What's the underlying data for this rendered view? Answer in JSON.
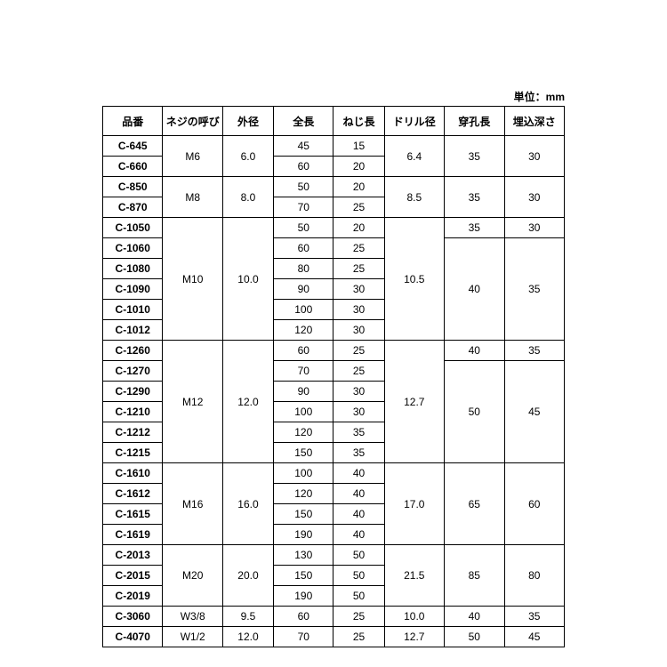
{
  "unit_label": "単位：mm",
  "columns": [
    "品番",
    "ネジの呼び",
    "外径",
    "全長",
    "ねじ長",
    "ドリル径",
    "穿孔長",
    "埋込深さ"
  ],
  "groups": [
    {
      "thread": "M6",
      "od": "6.0",
      "drill": "6.4",
      "hole": "35",
      "embed": "30",
      "rows": [
        {
          "pn": "C-645",
          "len": "45",
          "tl": "15"
        },
        {
          "pn": "C-660",
          "len": "60",
          "tl": "20"
        }
      ]
    },
    {
      "thread": "M8",
      "od": "8.0",
      "drill": "8.5",
      "hole": "35",
      "embed": "30",
      "rows": [
        {
          "pn": "C-850",
          "len": "50",
          "tl": "20"
        },
        {
          "pn": "C-870",
          "len": "70",
          "tl": "25"
        }
      ]
    },
    {
      "thread": "M10",
      "od": "10.0",
      "drill": "10.5",
      "hole_groups": [
        {
          "hole": "35",
          "embed": "30",
          "count": 1
        },
        {
          "hole": "40",
          "embed": "35",
          "count": 5
        }
      ],
      "rows": [
        {
          "pn": "C-1050",
          "len": "50",
          "tl": "20"
        },
        {
          "pn": "C-1060",
          "len": "60",
          "tl": "25"
        },
        {
          "pn": "C-1080",
          "len": "80",
          "tl": "25"
        },
        {
          "pn": "C-1090",
          "len": "90",
          "tl": "30"
        },
        {
          "pn": "C-1010",
          "len": "100",
          "tl": "30"
        },
        {
          "pn": "C-1012",
          "len": "120",
          "tl": "30"
        }
      ]
    },
    {
      "thread": "M12",
      "od": "12.0",
      "drill": "12.7",
      "hole_groups": [
        {
          "hole": "40",
          "embed": "35",
          "count": 1
        },
        {
          "hole": "50",
          "embed": "45",
          "count": 5
        }
      ],
      "rows": [
        {
          "pn": "C-1260",
          "len": "60",
          "tl": "25"
        },
        {
          "pn": "C-1270",
          "len": "70",
          "tl": "25"
        },
        {
          "pn": "C-1290",
          "len": "90",
          "tl": "30"
        },
        {
          "pn": "C-1210",
          "len": "100",
          "tl": "30"
        },
        {
          "pn": "C-1212",
          "len": "120",
          "tl": "35"
        },
        {
          "pn": "C-1215",
          "len": "150",
          "tl": "35"
        }
      ]
    },
    {
      "thread": "M16",
      "od": "16.0",
      "drill": "17.0",
      "hole": "65",
      "embed": "60",
      "rows": [
        {
          "pn": "C-1610",
          "len": "100",
          "tl": "40"
        },
        {
          "pn": "C-1612",
          "len": "120",
          "tl": "40"
        },
        {
          "pn": "C-1615",
          "len": "150",
          "tl": "40"
        },
        {
          "pn": "C-1619",
          "len": "190",
          "tl": "40"
        }
      ]
    },
    {
      "thread": "M20",
      "od": "20.0",
      "drill": "21.5",
      "hole": "85",
      "embed": "80",
      "rows": [
        {
          "pn": "C-2013",
          "len": "130",
          "tl": "50"
        },
        {
          "pn": "C-2015",
          "len": "150",
          "tl": "50"
        },
        {
          "pn": "C-2019",
          "len": "190",
          "tl": "50"
        }
      ]
    },
    {
      "thread": "W3/8",
      "od": "9.5",
      "drill": "10.0",
      "hole": "40",
      "embed": "35",
      "rows": [
        {
          "pn": "C-3060",
          "len": "60",
          "tl": "25"
        }
      ]
    },
    {
      "thread": "W1/2",
      "od": "12.0",
      "drill": "12.7",
      "hole": "50",
      "embed": "45",
      "rows": [
        {
          "pn": "C-4070",
          "len": "70",
          "tl": "25"
        }
      ]
    }
  ],
  "style": {
    "border_color": "#000000",
    "background_color": "#ffffff",
    "font_size_pt": 12,
    "header_font_weight": "bold"
  }
}
